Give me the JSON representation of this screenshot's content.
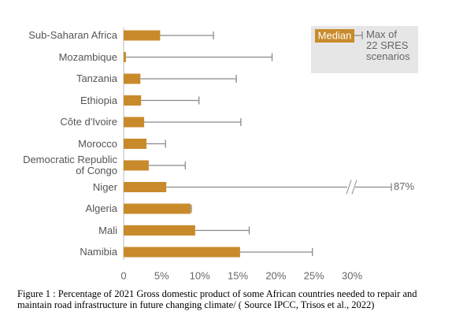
{
  "chart_data": {
    "type": "bar",
    "categories": [
      "Sub-Saharan Africa",
      "Mozambique",
      "Tanzania",
      "Ethiopia",
      "Côte d'Ivoire",
      "Morocco",
      "Democratic Republic\nof Congo",
      "Niger",
      "Algeria",
      "Mali",
      "Namibia"
    ],
    "series": [
      {
        "name": "Median",
        "color": "#c98a2b",
        "values": [
          4.8,
          0.3,
          2.2,
          2.3,
          2.7,
          3.0,
          3.3,
          5.6,
          8.8,
          9.4,
          15.3
        ]
      },
      {
        "name": "Max of\n22 SRES\nscenarios",
        "color": "#8a8a8a",
        "values": [
          11.8,
          19.5,
          14.8,
          9.9,
          15.4,
          5.5,
          8.1,
          87,
          8.9,
          16.5,
          24.8
        ],
        "value_labels": [
          null,
          null,
          null,
          null,
          null,
          null,
          null,
          "87%",
          null,
          null,
          null
        ]
      }
    ],
    "xlim": [
      0,
      30
    ],
    "xticks": [
      0,
      {
        "value": 5,
        "label": "5%"
      },
      {
        "value": 10,
        "label": "10%"
      },
      {
        "value": 15,
        "label": "15%"
      },
      {
        "value": 20,
        "label": "20%"
      },
      {
        "value": 25,
        "label": "25%"
      },
      {
        "value": 30,
        "label": "30%"
      }
    ],
    "legend": "top-right",
    "caption": "Figure 1 :  Percentage of 2021 Gross domestic product of some African countries needed to repair and maintain road infrastructure in future changing climate/ ( Source IPCC, Trisos et al., 2022)"
  }
}
